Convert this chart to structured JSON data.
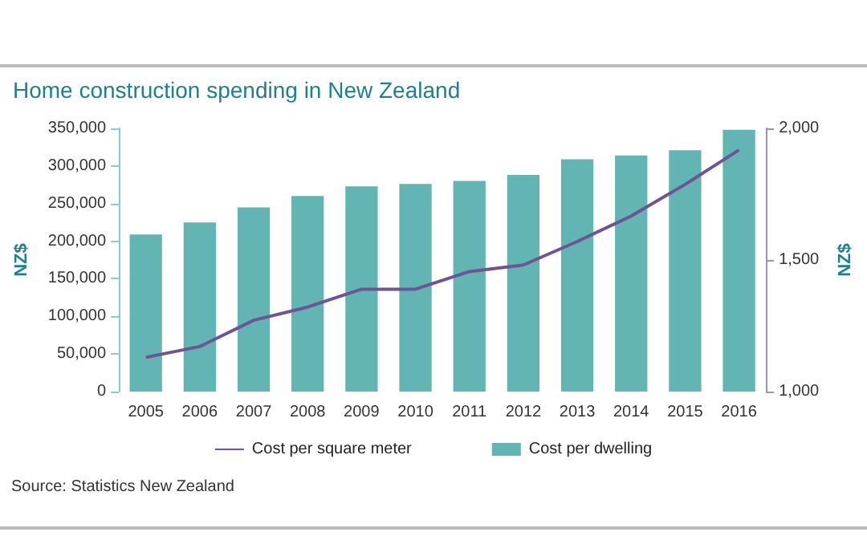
{
  "chart_data": {
    "type": "bar",
    "title": "Home construction spending in New Zealand",
    "ylabel": "NZ$",
    "y2label": "NZ$",
    "categories": [
      "2005",
      "2006",
      "2007",
      "2008",
      "2009",
      "2010",
      "2011",
      "2012",
      "2013",
      "2014",
      "2015",
      "2016"
    ],
    "series": [
      {
        "name": "Cost per square meter",
        "type": "line",
        "axis": "y2",
        "color": "#6f5495",
        "values": [
          1130,
          1171,
          1271,
          1321,
          1389,
          1389,
          1456,
          1481,
          1570,
          1667,
          1787,
          1918
        ]
      },
      {
        "name": "Cost per dwelling",
        "color": "#62b5b3",
        "values": [
          209000,
          225000,
          245000,
          260000,
          273000,
          276000,
          280000,
          288000,
          309000,
          314000,
          321000,
          348000
        ]
      }
    ],
    "ylim": [
      0,
      350000
    ],
    "yticks": [
      0,
      {
        "value": 50000,
        "label": "50,000"
      },
      {
        "value": 100000,
        "label": "100,000"
      },
      {
        "value": 150000,
        "label": "150,000"
      },
      {
        "value": 200000,
        "label": "200,000"
      },
      {
        "value": 250000,
        "label": "250,000"
      },
      {
        "value": 300000,
        "label": "300,000"
      },
      {
        "value": 350000,
        "label": "350,000"
      }
    ],
    "y2lim": [
      1000,
      2000
    ],
    "y2ticks": [
      {
        "value": 1000,
        "label": "1,000"
      },
      {
        "value": 1500,
        "label": "1,500"
      },
      {
        "value": 2000,
        "label": "2,000"
      }
    ],
    "legend": "bottom",
    "grid": false,
    "marker": "none",
    "annotations": [
      "Source: Statistics New Zealand"
    ]
  }
}
